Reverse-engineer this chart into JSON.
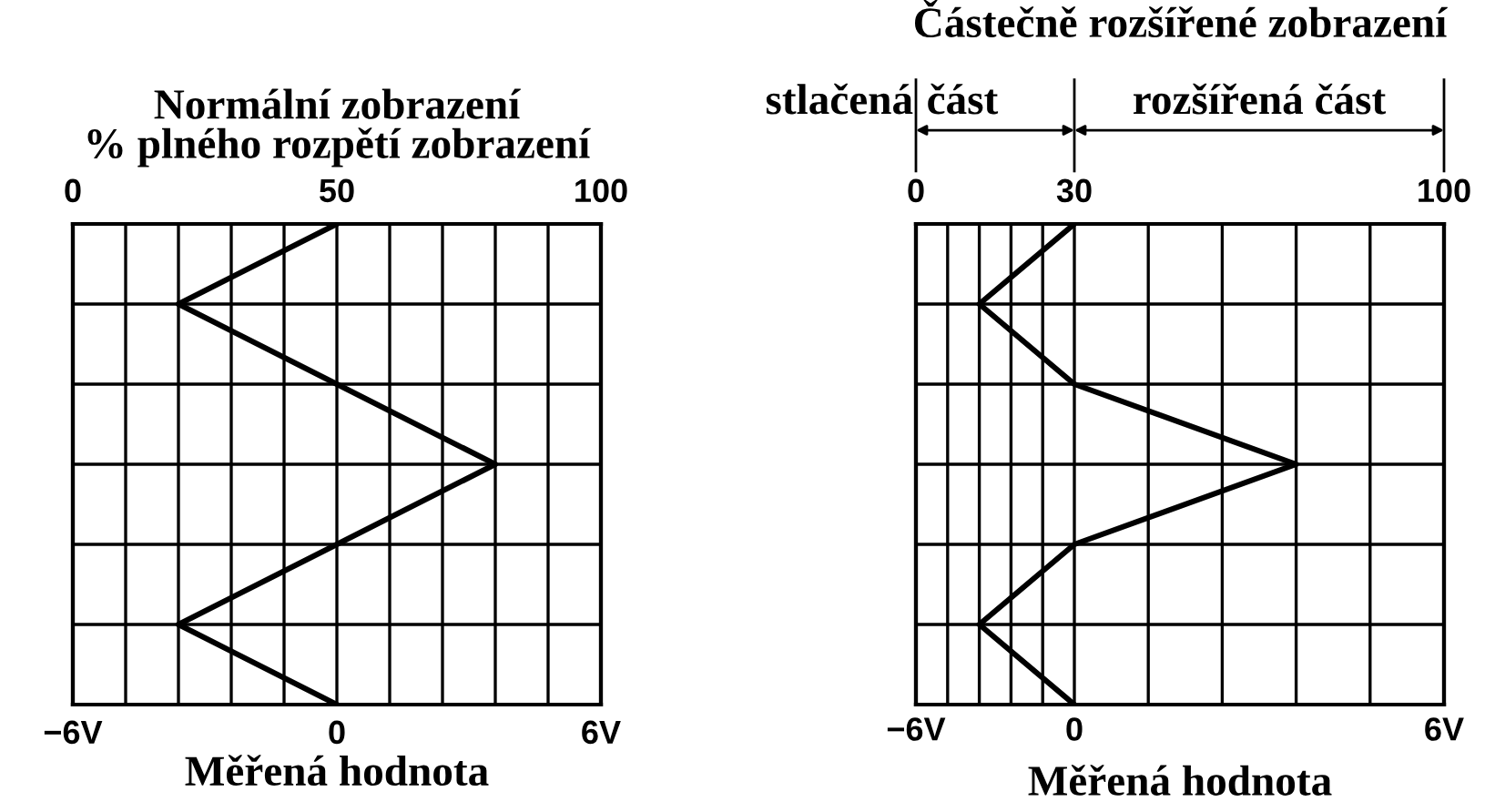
{
  "chart_data": [
    {
      "type": "line",
      "orientation": "horizontal",
      "title": "Normální zobrazení",
      "x2label": "% plného rozpětí zobrazení",
      "xlabel": "Měřená hodnota",
      "categories": [
        null,
        null,
        null,
        null,
        null,
        null,
        null
      ],
      "series": [
        {
          "color": "#000000",
          "values": [
            0,
            -3.6,
            0,
            3.6,
            0,
            -3.6,
            0
          ]
        }
      ],
      "xlim": [
        -6,
        6
      ],
      "xticks": [
        {
          "value": -6,
          "label": "−6V"
        },
        {
          "value": -4.8,
          "label": null
        },
        {
          "value": -3.6,
          "label": null
        },
        {
          "value": -2.4,
          "label": null
        },
        {
          "value": -1.2,
          "label": null
        },
        0,
        {
          "value": 1.2,
          "label": null
        },
        {
          "value": 2.4,
          "label": null
        },
        {
          "value": 3.6,
          "label": null
        },
        {
          "value": 4.8,
          "label": null
        },
        {
          "value": 6,
          "label": "6V"
        }
      ],
      "x2lim": [
        0,
        100
      ],
      "x2ticks": [
        0,
        50,
        100
      ],
      "grid": true,
      "tick_labels": "x",
      "marker": "none",
      "line_style": "solid"
    },
    {
      "type": "line",
      "orientation": "horizontal",
      "title": "Částečně rozšířené zobrazení",
      "xlabel": "Měřená hodnota",
      "annotations": [
        "stlačená",
        "část",
        "rozšířená část",
        "−6V",
        "0",
        "6V"
      ],
      "categories": [
        null,
        null,
        null,
        null,
        null,
        null,
        null
      ],
      "series": [
        {
          "color": "#000000",
          "axis": "x2",
          "values": [
            30,
            12,
            30,
            72,
            30,
            12,
            30
          ]
        }
      ],
      "x2lim": [
        0,
        100
      ],
      "x2ticks": [
        0,
        {
          "value": 6,
          "label": null
        },
        {
          "value": 12,
          "label": null
        },
        {
          "value": 18,
          "label": null
        },
        {
          "value": 24,
          "label": null
        },
        30,
        {
          "value": 44,
          "label": null
        },
        {
          "value": 58,
          "label": null
        },
        {
          "value": 72,
          "label": null
        },
        {
          "value": 86,
          "label": null
        },
        100
      ],
      "grid": true,
      "tick_labels": "x",
      "marker": "none",
      "line_style": "solid"
    }
  ]
}
